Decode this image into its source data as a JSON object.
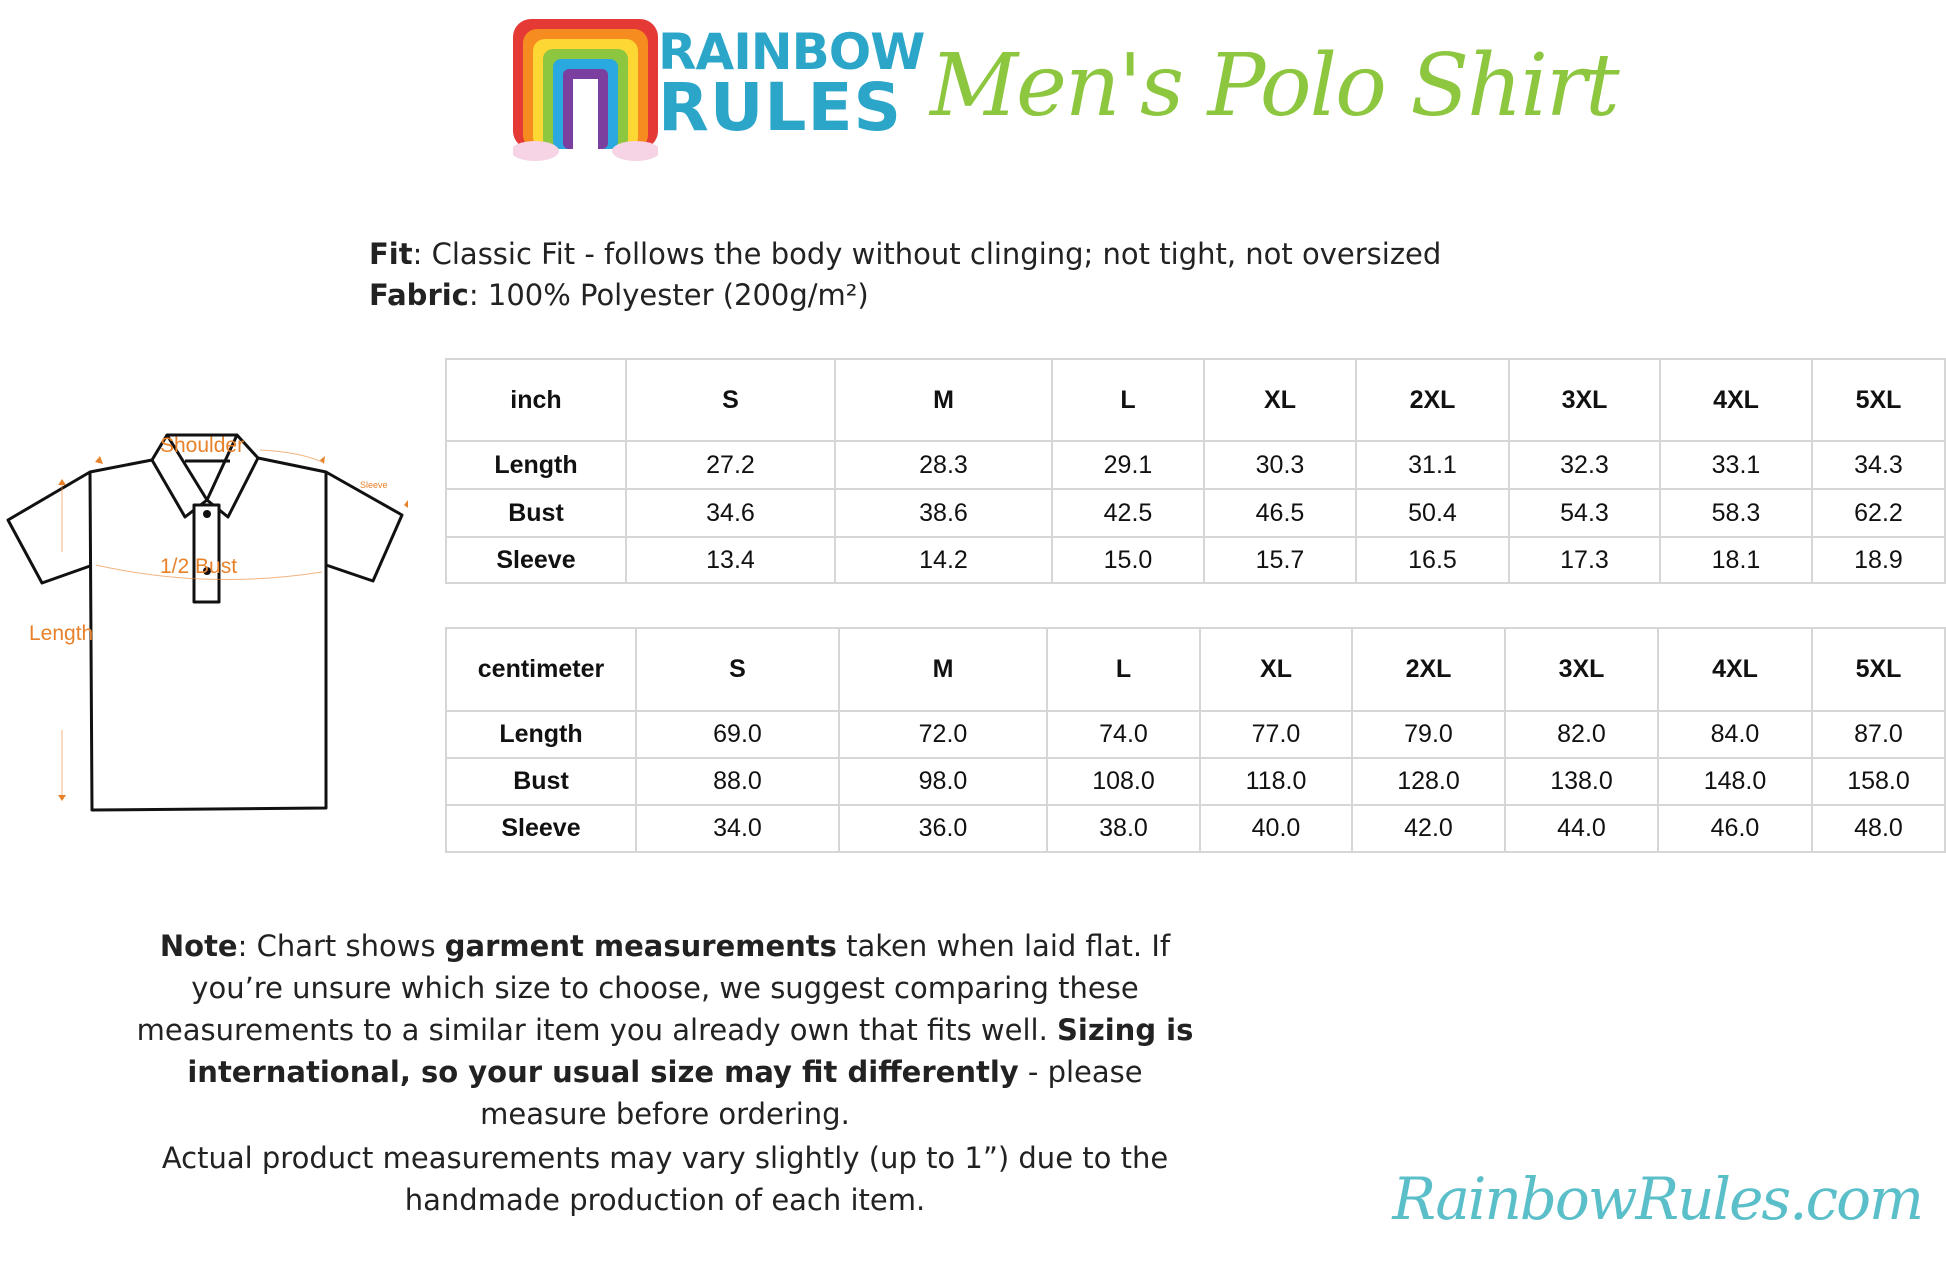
{
  "brand": {
    "logo_line1": "RAINBOW",
    "logo_line2": "RULES",
    "website": "RainbowRules.com"
  },
  "title": "Men's Polo Shirt",
  "specs": {
    "fit_label": "Fit",
    "fit_value": ": Classic Fit - follows the body without clinging; not tight, not oversized",
    "fabric_label": "Fabric",
    "fabric_value": ": 100% Polyester (200g/m²)"
  },
  "diagram": {
    "shoulder": "Shoulder",
    "bust": "1/2 Bust",
    "length": "Length",
    "sleeve": "Sleeve",
    "accent_color": "#e8822a"
  },
  "sizes": [
    "S",
    "M",
    "L",
    "XL",
    "2XL",
    "3XL",
    "4XL",
    "5XL"
  ],
  "inch_table": {
    "unit": "inch",
    "rows": [
      {
        "label": "Length",
        "values": [
          "27.2",
          "28.3",
          "29.1",
          "30.3",
          "31.1",
          "32.3",
          "33.1",
          "34.3"
        ]
      },
      {
        "label": "Bust",
        "values": [
          "34.6",
          "38.6",
          "42.5",
          "46.5",
          "50.4",
          "54.3",
          "58.3",
          "62.2"
        ]
      },
      {
        "label": "Sleeve",
        "values": [
          "13.4",
          "14.2",
          "15.0",
          "15.7",
          "16.5",
          "17.3",
          "18.1",
          "18.9"
        ]
      }
    ]
  },
  "cm_table": {
    "unit": "centimeter",
    "rows": [
      {
        "label": "Length",
        "values": [
          "69.0",
          "72.0",
          "74.0",
          "77.0",
          "79.0",
          "82.0",
          "84.0",
          "87.0"
        ]
      },
      {
        "label": "Bust",
        "values": [
          "88.0",
          "98.0",
          "108.0",
          "118.0",
          "128.0",
          "138.0",
          "148.0",
          "158.0"
        ]
      },
      {
        "label": "Sleeve",
        "values": [
          "34.0",
          "36.0",
          "38.0",
          "40.0",
          "42.0",
          "44.0",
          "46.0",
          "48.0"
        ]
      }
    ]
  },
  "note": {
    "label": "Note",
    "t1": ": Chart shows ",
    "b1": "garment measurements",
    "t2": " taken when laid flat. If you’re unsure which size to choose, we suggest comparing these measurements to a similar item you already own that fits well. ",
    "b2": "Sizing is international, so your usual size may fit differently",
    "t3": " - please measure before ordering.",
    "para2": "Actual product measurements may vary slightly (up to 1”) due to the handmade production of each item."
  }
}
